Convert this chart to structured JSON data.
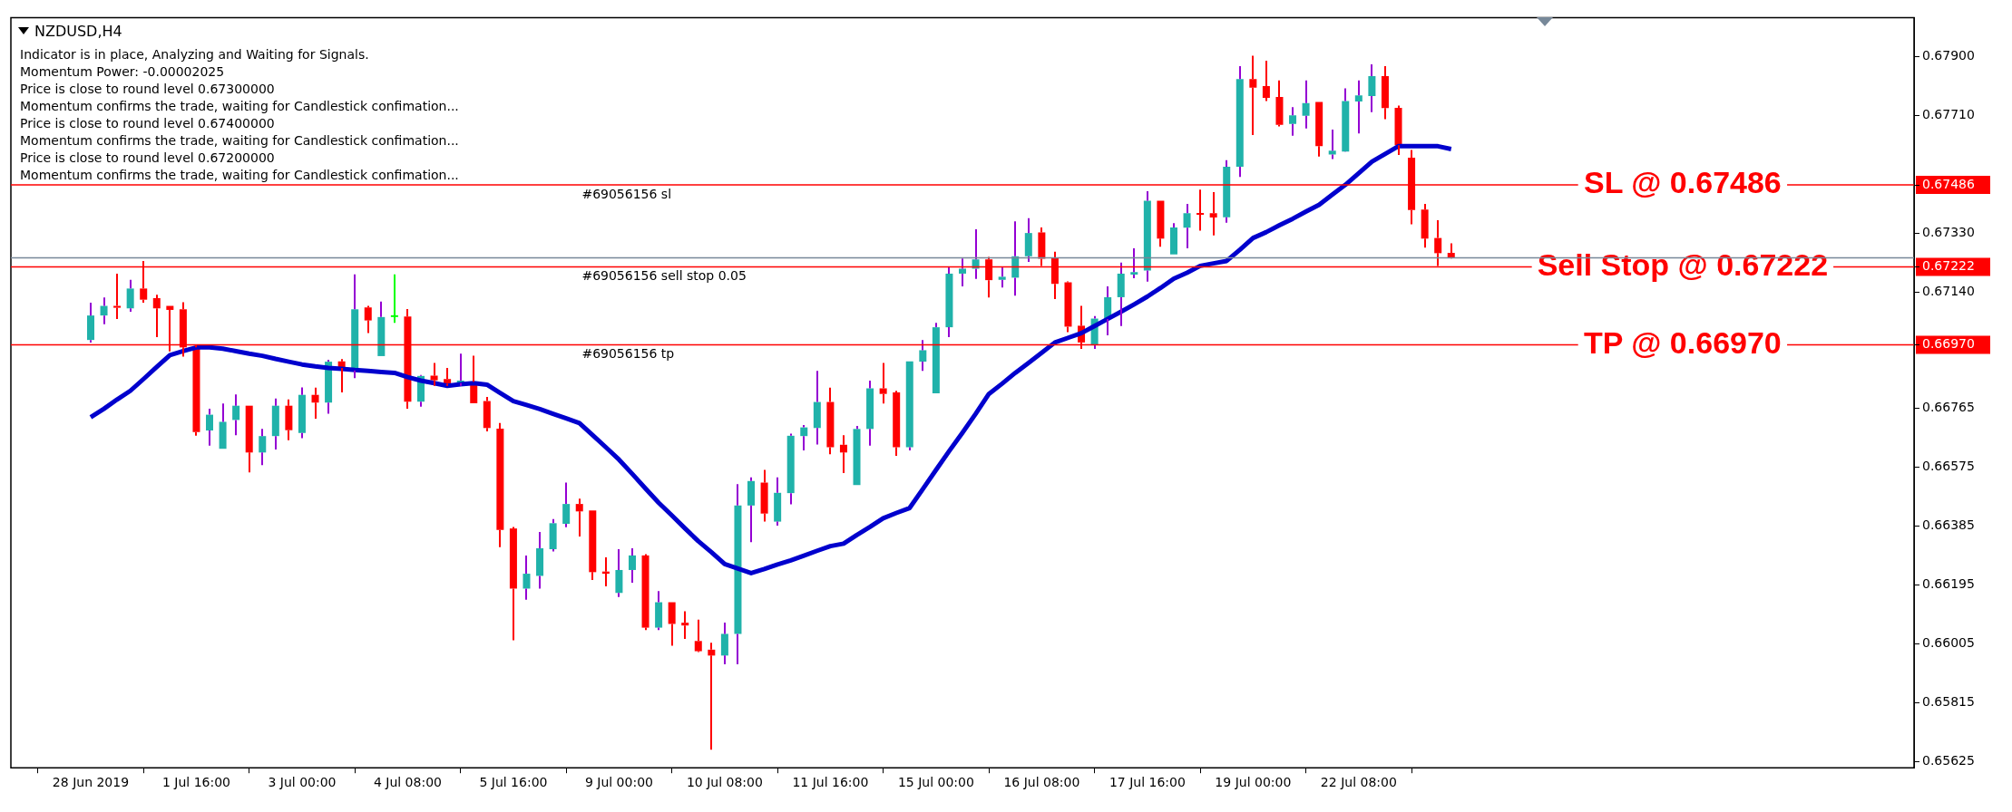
{
  "chart_data": {
    "type": "candlestick",
    "title": "NZDUSD,H4",
    "categories": [
      "28 Jun 2019",
      null,
      null,
      null,
      null,
      null,
      null,
      null,
      "1 Jul 16:00",
      null,
      null,
      null,
      null,
      null,
      null,
      null,
      "3 Jul 00:00",
      null,
      null,
      null,
      null,
      null,
      null,
      null,
      "4 Jul 08:00",
      null,
      null,
      null,
      null,
      null,
      null,
      null,
      "5 Jul 16:00",
      null,
      null,
      null,
      null,
      null,
      null,
      null,
      "9 Jul 00:00",
      null,
      null,
      null,
      null,
      null,
      null,
      null,
      "10 Jul 08:00",
      null,
      null,
      null,
      null,
      null,
      null,
      null,
      "11 Jul 16:00",
      null,
      null,
      null,
      null,
      null,
      null,
      null,
      "15 Jul 00:00",
      null,
      null,
      null,
      null,
      null,
      null,
      null,
      "16 Jul 08:00",
      null,
      null,
      null,
      null,
      null,
      null,
      null,
      "17 Jul 16:00",
      null,
      null,
      null,
      null,
      null,
      null,
      null,
      "19 Jul 00:00",
      null,
      null,
      null,
      null,
      null,
      null,
      null,
      "22 Jul 08:00",
      null,
      null,
      null,
      null,
      null,
      null,
      null
    ],
    "ohlc": [
      [
        0.66986,
        0.67106,
        0.66978,
        0.67065
      ],
      [
        0.67065,
        0.67123,
        0.67037,
        0.67096
      ],
      [
        0.67096,
        0.672,
        0.67054,
        0.6709
      ],
      [
        0.67088,
        0.6718,
        0.67077,
        0.67152
      ],
      [
        0.67152,
        0.67241,
        0.67106,
        0.67116
      ],
      [
        0.67121,
        0.67132,
        0.66995,
        0.67088
      ],
      [
        0.67096,
        0.67096,
        0.66949,
        0.67083
      ],
      [
        0.67085,
        0.67108,
        0.66932,
        0.66962
      ],
      [
        0.66962,
        0.6697,
        0.66677,
        0.66689
      ],
      [
        0.66694,
        0.66764,
        0.66645,
        0.66745
      ],
      [
        0.66635,
        0.66781,
        0.66635,
        0.66722
      ],
      [
        0.66728,
        0.6681,
        0.66679,
        0.66774
      ],
      [
        0.66774,
        0.66774,
        0.66559,
        0.66623
      ],
      [
        0.66623,
        0.66699,
        0.66582,
        0.66676
      ],
      [
        0.66676,
        0.66797,
        0.66633,
        0.66774
      ],
      [
        0.66774,
        0.66794,
        0.66663,
        0.66695
      ],
      [
        0.66686,
        0.66833,
        0.66669,
        0.66809
      ],
      [
        0.66809,
        0.66832,
        0.66732,
        0.66784
      ],
      [
        0.66784,
        0.66922,
        0.66748,
        0.66916
      ],
      [
        0.66917,
        0.66924,
        0.66817,
        0.66896
      ],
      [
        0.66888,
        0.67198,
        0.66863,
        0.67085
      ],
      [
        0.67091,
        0.67096,
        0.67008,
        0.67049
      ],
      [
        0.66934,
        0.6711,
        0.66934,
        0.6706
      ],
      [
        0.6706,
        0.67198,
        0.67041,
        0.6706
      ],
      [
        0.67062,
        0.67086,
        0.66764,
        0.66787
      ],
      [
        0.66787,
        0.66873,
        0.66771,
        0.6687
      ],
      [
        0.66871,
        0.66912,
        0.66838,
        0.66856
      ],
      [
        0.6686,
        0.66896,
        0.66838,
        0.66845
      ],
      [
        0.66847,
        0.66942,
        0.66838,
        0.66855
      ],
      [
        0.66851,
        0.66935,
        0.66782,
        0.66782
      ],
      [
        0.66789,
        0.66802,
        0.66691,
        0.66702
      ],
      [
        0.667,
        0.66718,
        0.66318,
        0.66373
      ],
      [
        0.66378,
        0.66383,
        0.66017,
        0.66184
      ],
      [
        0.66184,
        0.66291,
        0.66148,
        0.66232
      ],
      [
        0.66225,
        0.66367,
        0.66184,
        0.66314
      ],
      [
        0.66311,
        0.66408,
        0.66304,
        0.66395
      ],
      [
        0.66393,
        0.66526,
        0.66382,
        0.66457
      ],
      [
        0.66457,
        0.66474,
        0.66352,
        0.66433
      ],
      [
        0.66436,
        0.66436,
        0.66212,
        0.66237
      ],
      [
        0.66239,
        0.66285,
        0.66191,
        0.66232
      ],
      [
        0.6617,
        0.66311,
        0.66157,
        0.66244
      ],
      [
        0.66244,
        0.66314,
        0.66203,
        0.66291
      ],
      [
        0.66291,
        0.66295,
        0.6605,
        0.66058
      ],
      [
        0.66058,
        0.66176,
        0.6605,
        0.6614
      ],
      [
        0.6614,
        0.6614,
        0.66,
        0.6607
      ],
      [
        0.66074,
        0.66111,
        0.66022,
        0.66065
      ],
      [
        0.66015,
        0.66084,
        0.65979,
        0.65982
      ],
      [
        0.65987,
        0.66009,
        0.65664,
        0.65968
      ],
      [
        0.65968,
        0.66074,
        0.6594,
        0.66038
      ],
      [
        0.66038,
        0.66521,
        0.6594,
        0.66452
      ],
      [
        0.66452,
        0.66543,
        0.66334,
        0.66531
      ],
      [
        0.66526,
        0.66567,
        0.664,
        0.66426
      ],
      [
        0.664,
        0.66543,
        0.66387,
        0.66493
      ],
      [
        0.66492,
        0.66684,
        0.66456,
        0.66677
      ],
      [
        0.66676,
        0.66712,
        0.6663,
        0.66704
      ],
      [
        0.66702,
        0.66886,
        0.66649,
        0.66786
      ],
      [
        0.66786,
        0.66832,
        0.66617,
        0.6664
      ],
      [
        0.66648,
        0.66679,
        0.66557,
        0.66623
      ],
      [
        0.66518,
        0.66709,
        0.66518,
        0.66699
      ],
      [
        0.66699,
        0.66855,
        0.66645,
        0.6683
      ],
      [
        0.6683,
        0.66912,
        0.66781,
        0.66812
      ],
      [
        0.66817,
        0.66822,
        0.66612,
        0.6664
      ],
      [
        0.6664,
        0.66917,
        0.6663,
        0.66917
      ],
      [
        0.66916,
        0.66986,
        0.66886,
        0.66953
      ],
      [
        0.66814,
        0.67041,
        0.66814,
        0.67027
      ],
      [
        0.67027,
        0.6722,
        0.66995,
        0.672
      ],
      [
        0.672,
        0.67249,
        0.67159,
        0.67216
      ],
      [
        0.67216,
        0.67343,
        0.67183,
        0.67246
      ],
      [
        0.67246,
        0.67254,
        0.67123,
        0.67179
      ],
      [
        0.6718,
        0.67221,
        0.67155,
        0.6719
      ],
      [
        0.67187,
        0.67369,
        0.67129,
        0.67256
      ],
      [
        0.67256,
        0.67379,
        0.67238,
        0.67331
      ],
      [
        0.67333,
        0.67349,
        0.67225,
        0.67248
      ],
      [
        0.67251,
        0.67271,
        0.67118,
        0.67167
      ],
      [
        0.67172,
        0.67175,
        0.67011,
        0.67029
      ],
      [
        0.67032,
        0.67096,
        0.66957,
        0.66978
      ],
      [
        0.66971,
        0.67063,
        0.66957,
        0.67055
      ],
      [
        0.67054,
        0.67159,
        0.67001,
        0.67124
      ],
      [
        0.67124,
        0.67236,
        0.67031,
        0.672
      ],
      [
        0.67197,
        0.67282,
        0.67185,
        0.67205
      ],
      [
        0.6721,
        0.67466,
        0.67174,
        0.67435
      ],
      [
        0.67435,
        0.67435,
        0.67287,
        0.67313
      ],
      [
        0.67262,
        0.67363,
        0.67262,
        0.67349
      ],
      [
        0.67348,
        0.67425,
        0.67282,
        0.67395
      ],
      [
        0.67394,
        0.67471,
        0.67339,
        0.6739
      ],
      [
        0.67395,
        0.67463,
        0.67323,
        0.67381
      ],
      [
        0.67382,
        0.67566,
        0.67364,
        0.67545
      ],
      [
        0.67545,
        0.67869,
        0.67512,
        0.67828
      ],
      [
        0.67828,
        0.67903,
        0.67647,
        0.678
      ],
      [
        0.67805,
        0.67887,
        0.67757,
        0.67767
      ],
      [
        0.6777,
        0.67823,
        0.67675,
        0.6768
      ],
      [
        0.67683,
        0.67737,
        0.67645,
        0.67711
      ],
      [
        0.67709,
        0.67823,
        0.67668,
        0.6775
      ],
      [
        0.67754,
        0.67754,
        0.67578,
        0.67611
      ],
      [
        0.67584,
        0.67665,
        0.6757,
        0.67597
      ],
      [
        0.67594,
        0.67798,
        0.67593,
        0.67757
      ],
      [
        0.67755,
        0.67823,
        0.67652,
        0.67775
      ],
      [
        0.67773,
        0.67875,
        0.67721,
        0.67837
      ],
      [
        0.67837,
        0.67869,
        0.67698,
        0.67734
      ],
      [
        0.67735,
        0.67742,
        0.67583,
        0.67614
      ],
      [
        0.67574,
        0.67599,
        0.67359,
        0.67405
      ],
      [
        0.67407,
        0.67425,
        0.67284,
        0.67313
      ],
      [
        0.67315,
        0.67372,
        0.67225,
        0.67266
      ],
      [
        0.67267,
        0.67298,
        0.67249,
        0.67251
      ]
    ],
    "colors": [
      "#20b2aa",
      "#20b2aa",
      "#ff0000",
      "#20b2aa",
      "#ff0000",
      "#ff0000",
      "#ff0000",
      "#ff0000",
      "#ff0000",
      "#20b2aa",
      "#20b2aa",
      "#20b2aa",
      "#ff0000",
      "#20b2aa",
      "#20b2aa",
      "#ff0000",
      "#20b2aa",
      "#ff0000",
      "#20b2aa",
      "#ff0000",
      "#20b2aa",
      "#ff0000",
      "#20b2aa",
      "#00ff00",
      "#ff0000",
      "#20b2aa",
      "#ff0000",
      "#ff0000",
      "#20b2aa",
      "#ff0000",
      "#ff0000",
      "#ff0000",
      "#ff0000",
      "#20b2aa",
      "#20b2aa",
      "#20b2aa",
      "#20b2aa",
      "#ff0000",
      "#ff0000",
      "#ff0000",
      "#20b2aa",
      "#20b2aa",
      "#ff0000",
      "#20b2aa",
      "#ff0000",
      "#ff0000",
      "#ff0000",
      "#ff0000",
      "#20b2aa",
      "#20b2aa",
      "#20b2aa",
      "#ff0000",
      "#20b2aa",
      "#20b2aa",
      "#20b2aa",
      "#20b2aa",
      "#ff0000",
      "#ff0000",
      "#20b2aa",
      "#20b2aa",
      "#ff0000",
      "#ff0000",
      "#20b2aa",
      "#20b2aa",
      "#20b2aa",
      "#20b2aa",
      "#20b2aa",
      "#20b2aa",
      "#ff0000",
      "#20b2aa",
      "#20b2aa",
      "#20b2aa",
      "#ff0000",
      "#ff0000",
      "#ff0000",
      "#ff0000",
      "#20b2aa",
      "#20b2aa",
      "#20b2aa",
      "#20b2aa",
      "#20b2aa",
      "#ff0000",
      "#20b2aa",
      "#20b2aa",
      "#ff0000",
      "#ff0000",
      "#20b2aa",
      "#20b2aa",
      "#ff0000",
      "#ff0000",
      "#ff0000",
      "#20b2aa",
      "#20b2aa",
      "#ff0000",
      "#20b2aa",
      "#20b2aa",
      "#20b2aa",
      "#20b2aa",
      "#ff0000",
      "#ff0000",
      "#ff0000",
      "#ff0000",
      "#ff0000",
      "#ff0000"
    ],
    "series": [
      {
        "type": "line",
        "color": "#0000cd",
        "values": [
          0.66737,
          0.66764,
          0.66794,
          0.66822,
          0.6686,
          0.66899,
          0.66937,
          0.6695,
          0.66962,
          0.66962,
          0.66958,
          0.6695,
          0.66942,
          0.66935,
          0.66925,
          0.66916,
          0.66907,
          0.66901,
          0.66896,
          0.66893,
          0.66889,
          0.66886,
          0.66883,
          0.6688,
          0.66866,
          0.66855,
          0.66847,
          0.66838,
          0.66843,
          0.66847,
          0.66842,
          0.66815,
          0.66789,
          0.66776,
          0.66763,
          0.66748,
          0.66733,
          0.66718,
          0.66679,
          0.6664,
          0.666,
          0.66554,
          0.66507,
          0.66461,
          0.6642,
          0.66378,
          0.66337,
          0.66301,
          0.66263,
          0.66249,
          0.66234,
          0.66247,
          0.66262,
          0.66275,
          0.6629,
          0.66306,
          0.66321,
          0.66329,
          0.66357,
          0.66383,
          0.66411,
          0.66428,
          0.66444,
          0.66505,
          0.66567,
          0.66628,
          0.66687,
          0.66748,
          0.66812,
          0.66845,
          0.6688,
          0.66912,
          0.66945,
          0.66978,
          0.66993,
          0.67008,
          0.67031,
          0.67054,
          0.67077,
          0.67101,
          0.67126,
          0.67154,
          0.67184,
          0.67203,
          0.67225,
          0.67233,
          0.67241,
          0.67277,
          0.67315,
          0.67334,
          0.67356,
          0.67377,
          0.674,
          0.67422,
          0.67455,
          0.67487,
          0.67524,
          0.67561,
          0.67586,
          0.67611,
          0.67611,
          0.67611,
          0.67611,
          0.67602
        ]
      }
    ],
    "ylim": [
      0.65606,
      0.68026
    ],
    "yticks": [
      {
        "value": 0.679,
        "label": "0.67900"
      },
      {
        "value": 0.6771,
        "label": "0.67710"
      },
      {
        "value": 0.67486,
        "label": "0.67486"
      },
      {
        "value": 0.6733,
        "label": "0.67330"
      },
      {
        "value": 0.67222,
        "label": "0.67222"
      },
      {
        "value": 0.6714,
        "label": "0.67140"
      },
      {
        "value": 0.6697,
        "label": "0.66970"
      },
      {
        "value": 0.66765,
        "label": "0.66765"
      },
      {
        "value": 0.66575,
        "label": "0.66575"
      },
      {
        "value": 0.66385,
        "label": "0.66385"
      },
      {
        "value": 0.66195,
        "label": "0.66195"
      },
      {
        "value": 0.66005,
        "label": "0.66005"
      },
      {
        "value": 0.65815,
        "label": "0.65815"
      },
      {
        "value": 0.65625,
        "label": "0.65625"
      }
    ],
    "ref_lines": [
      {
        "axis": "y",
        "value": 0.67486,
        "label": "SL @ 0.67486",
        "color": "#ff0000"
      },
      {
        "axis": "y",
        "value": 0.67222,
        "label": "Sell Stop @ 0.67222",
        "color": "#ff0000"
      },
      {
        "axis": "y",
        "value": 0.6697,
        "label": "TP @ 0.66970",
        "color": "#ff0000"
      },
      {
        "axis": "y",
        "value": 0.67251,
        "color": "#778899"
      }
    ],
    "annotations": [
      "Indicator is in place, Analyzing and Waiting for Signals.",
      "Momentum Power: -0.00002025",
      "Price is close to round level 0.67300000",
      "Momentum confirms the trade, waiting for Candlestick confimation...",
      "Price is close to round level 0.67400000",
      "Momentum confirms the trade, waiting for Candlestick confimation...",
      "Price is close to round level 0.67200000",
      "Momentum confirms the trade, waiting for Candlestick confimation...",
      {
        "text": "#69056156 sl",
        "y": 0.67486
      },
      {
        "text": "#69056156 sell stop 0.05",
        "y": 0.67222
      },
      {
        "text": "#69056156 tp",
        "y": 0.6697
      }
    ]
  }
}
